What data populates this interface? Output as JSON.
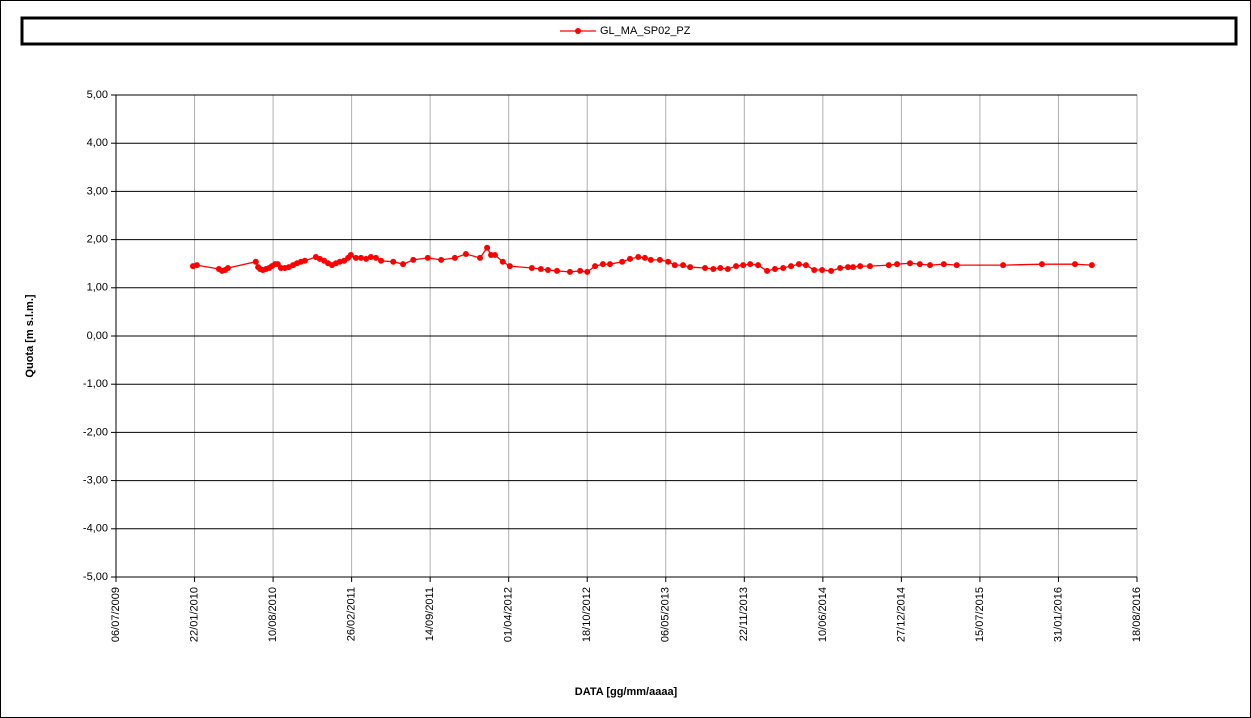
{
  "chart_data": {
    "type": "line",
    "x_label": "DATA [gg/mm/aaaa]",
    "y_label": "Quota [m s.l.m.]",
    "xlim": [
      "2009-07-06",
      "2016-08-18"
    ],
    "xticks": [
      {
        "value": "2009-07-06",
        "label": "06/07/2009"
      },
      {
        "value": "2010-01-22",
        "label": "22/01/2010"
      },
      {
        "value": "2010-08-10",
        "label": "10/08/2010"
      },
      {
        "value": "2011-02-26",
        "label": "26/02/2011"
      },
      {
        "value": "2011-09-14",
        "label": "14/09/2011"
      },
      {
        "value": "2012-04-01",
        "label": "01/04/2012"
      },
      {
        "value": "2012-10-18",
        "label": "18/10/2012"
      },
      {
        "value": "2013-05-06",
        "label": "06/05/2013"
      },
      {
        "value": "2013-11-22",
        "label": "22/11/2013"
      },
      {
        "value": "2014-06-10",
        "label": "10/06/2014"
      },
      {
        "value": "2014-12-27",
        "label": "27/12/2014"
      },
      {
        "value": "2015-07-15",
        "label": "15/07/2015"
      },
      {
        "value": "2016-01-31",
        "label": "31/01/2016"
      },
      {
        "value": "2016-08-18",
        "label": "18/08/2016"
      }
    ],
    "ylim": [
      -5,
      5
    ],
    "yticks": [
      {
        "value": 5,
        "label": "5,00"
      },
      {
        "value": 4,
        "label": "4,00"
      },
      {
        "value": 3,
        "label": "3,00"
      },
      {
        "value": 2,
        "label": "2,00"
      },
      {
        "value": 1,
        "label": "1,00"
      },
      {
        "value": 0,
        "label": "0,00"
      },
      {
        "value": -1,
        "label": "-1,00"
      },
      {
        "value": -2,
        "label": "-2,00"
      },
      {
        "value": -3,
        "label": "-3,00"
      },
      {
        "value": -4,
        "label": "-4,00"
      },
      {
        "value": -5,
        "label": "-5,00"
      }
    ],
    "grid": true,
    "legend": "top",
    "x": [
      "2010-01-18",
      "2010-01-28",
      "2010-03-25",
      "2010-04-02",
      "2010-04-10",
      "2010-04-17",
      "2010-06-27",
      "2010-07-03",
      "2010-07-08",
      "2010-07-15",
      "2010-07-23",
      "2010-07-31",
      "2010-08-07",
      "2010-08-15",
      "2010-08-22",
      "2010-08-30",
      "2010-09-09",
      "2010-09-19",
      "2010-09-30",
      "2010-10-10",
      "2010-10-20",
      "2010-10-30",
      "2010-11-27",
      "2010-12-07",
      "2010-12-18",
      "2010-12-28",
      "2011-01-07",
      "2011-01-17",
      "2011-01-27",
      "2011-02-07",
      "2011-02-17",
      "2011-02-24",
      "2011-03-09",
      "2011-03-22",
      "2011-04-04",
      "2011-04-16",
      "2011-04-29",
      "2011-05-12",
      "2011-06-12",
      "2011-07-07",
      "2011-08-02",
      "2011-09-08",
      "2011-10-12",
      "2011-11-16",
      "2011-12-14",
      "2012-01-19",
      "2012-02-06",
      "2012-02-16",
      "2012-02-26",
      "2012-03-17",
      "2012-04-04",
      "2012-05-30",
      "2012-06-22",
      "2012-07-10",
      "2012-08-02",
      "2012-09-04",
      "2012-09-30",
      "2012-10-18",
      "2012-11-07",
      "2012-11-27",
      "2012-12-15",
      "2013-01-15",
      "2013-02-04",
      "2013-02-25",
      "2013-03-14",
      "2013-03-29",
      "2013-04-21",
      "2013-05-12",
      "2013-05-29",
      "2013-06-19",
      "2013-07-07",
      "2013-08-14",
      "2013-09-04",
      "2013-09-22",
      "2013-10-11",
      "2013-11-01",
      "2013-11-19",
      "2013-12-07",
      "2013-12-27",
      "2014-01-19",
      "2014-02-08",
      "2014-03-01",
      "2014-03-21",
      "2014-04-10",
      "2014-04-28",
      "2014-05-19",
      "2014-06-08",
      "2014-07-01",
      "2014-07-24",
      "2014-08-13",
      "2014-08-26",
      "2014-09-13",
      "2014-10-08",
      "2014-11-25",
      "2014-12-16",
      "2015-01-18",
      "2015-02-12",
      "2015-03-10",
      "2015-04-14",
      "2015-05-17",
      "2015-09-12",
      "2015-12-20",
      "2016-03-13",
      "2016-04-25"
    ],
    "series": [
      {
        "name": "GL_MA_SP02_PZ",
        "color": "#ff0000",
        "values": [
          1.45,
          1.47,
          1.39,
          1.35,
          1.37,
          1.41,
          1.54,
          1.43,
          1.39,
          1.37,
          1.39,
          1.41,
          1.45,
          1.49,
          1.49,
          1.41,
          1.41,
          1.43,
          1.47,
          1.51,
          1.54,
          1.56,
          1.64,
          1.6,
          1.56,
          1.51,
          1.47,
          1.51,
          1.54,
          1.56,
          1.62,
          1.68,
          1.62,
          1.62,
          1.6,
          1.64,
          1.62,
          1.56,
          1.54,
          1.49,
          1.58,
          1.62,
          1.58,
          1.62,
          1.7,
          1.62,
          1.83,
          1.68,
          1.68,
          1.54,
          1.45,
          1.41,
          1.39,
          1.37,
          1.35,
          1.33,
          1.35,
          1.33,
          1.45,
          1.49,
          1.49,
          1.54,
          1.6,
          1.64,
          1.62,
          1.58,
          1.58,
          1.54,
          1.47,
          1.47,
          1.43,
          1.41,
          1.39,
          1.41,
          1.39,
          1.45,
          1.47,
          1.49,
          1.47,
          1.35,
          1.39,
          1.41,
          1.45,
          1.49,
          1.47,
          1.37,
          1.37,
          1.35,
          1.41,
          1.43,
          1.43,
          1.45,
          1.45,
          1.47,
          1.49,
          1.51,
          1.49,
          1.47,
          1.49,
          1.47,
          1.47,
          1.49,
          1.49,
          1.47
        ]
      }
    ]
  }
}
